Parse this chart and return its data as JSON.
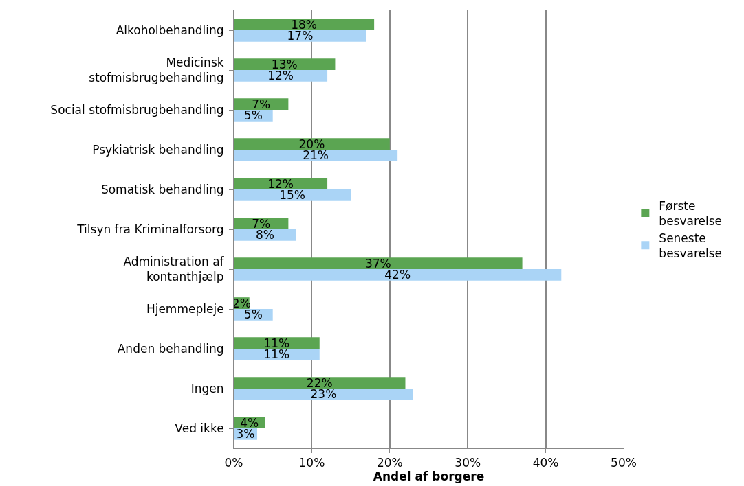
{
  "chart_data": {
    "type": "bar",
    "orientation": "horizontal",
    "xlabel": "Andel af borgere",
    "categories": [
      "Alkoholbehandling",
      "Medicinsk\nstofmisbrugbehandling",
      "Social stofmisbrugbehandling",
      "Psykiatrisk behandling",
      "Somatisk behandling",
      "Tilsyn fra Kriminalforsorg",
      "Administration af\nkontanthjælp",
      "Hjemmepleje",
      "Anden behandling",
      "Ingen",
      "Ved ikke"
    ],
    "series": [
      {
        "name": "Første\nbesvarelse",
        "color": "#5ba552",
        "values": [
          18,
          13,
          7,
          20,
          12,
          7,
          37,
          2,
          11,
          22,
          4
        ],
        "value_labels": [
          "18%",
          "13%",
          "7%",
          "20%",
          "12%",
          "7%",
          "37%",
          "2%",
          "11%",
          "22%",
          "4%"
        ]
      },
      {
        "name": "Seneste\nbesvarelse",
        "color": "#aad4f6",
        "values": [
          17,
          12,
          5,
          21,
          15,
          8,
          42,
          5,
          11,
          23,
          3
        ],
        "value_labels": [
          "17%",
          "12%",
          "5%",
          "21%",
          "15%",
          "8%",
          "42%",
          "5%",
          "11%",
          "23%",
          "3%"
        ]
      }
    ],
    "xlim": [
      0,
      50
    ],
    "xticks": [
      {
        "value": 0,
        "label": "0%"
      },
      {
        "value": 10,
        "label": "10%"
      },
      {
        "value": 20,
        "label": "20%"
      },
      {
        "value": 30,
        "label": "30%"
      },
      {
        "value": 40,
        "label": "40%"
      },
      {
        "value": 50,
        "label": "50%"
      }
    ],
    "grid": "x",
    "legend": "right"
  }
}
